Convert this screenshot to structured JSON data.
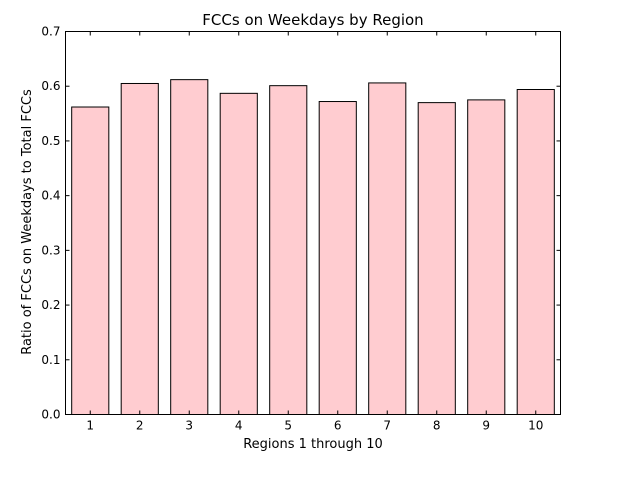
{
  "chart_data": {
    "type": "bar",
    "title": "FCCs on Weekdays by Region",
    "xlabel": "Regions 1 through 10",
    "ylabel": "Ratio of FCCs on Weekdays to Total FCCs",
    "categories": [
      "1",
      "2",
      "3",
      "4",
      "5",
      "6",
      "7",
      "8",
      "9",
      "10"
    ],
    "values": [
      0.562,
      0.605,
      0.612,
      0.587,
      0.601,
      0.572,
      0.606,
      0.57,
      0.575,
      0.594
    ],
    "ylim": [
      0,
      0.7
    ],
    "yticks": [
      "0.0",
      "0.1",
      "0.2",
      "0.3",
      "0.4",
      "0.5",
      "0.6",
      "0.7"
    ],
    "grid": false,
    "bar_color": "#ffccd0",
    "edge_color": "#000000"
  }
}
